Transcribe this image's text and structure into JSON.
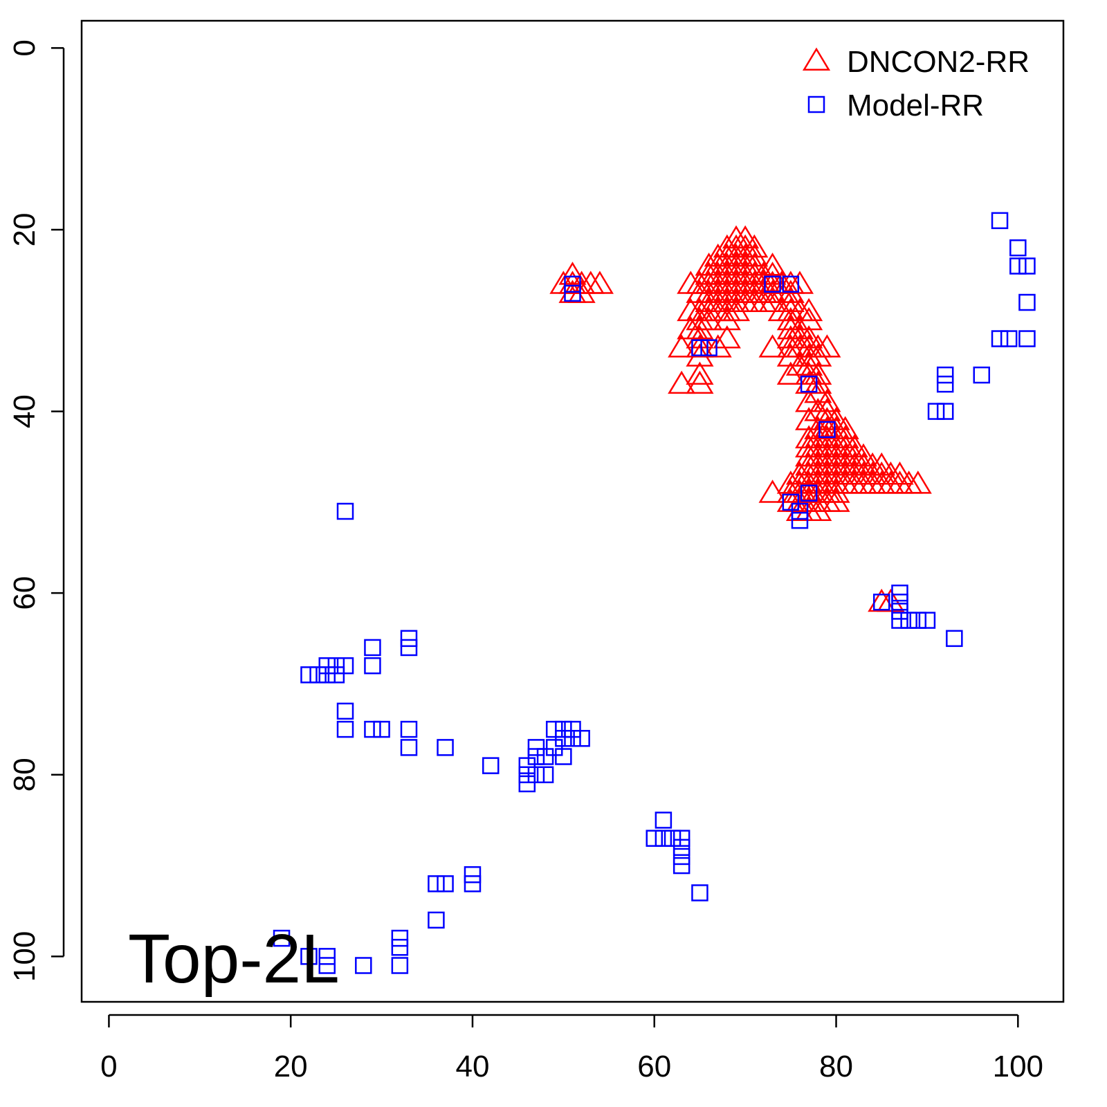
{
  "chart_data": {
    "type": "scatter",
    "annotation": "Top-2L",
    "xlim": [
      -3,
      105
    ],
    "ylim": [
      105,
      -3
    ],
    "xticks": [
      0,
      20,
      40,
      60,
      80,
      100
    ],
    "yticks": [
      0,
      20,
      40,
      60,
      80,
      100
    ],
    "legend": "top-right",
    "series": [
      {
        "name": "DNCON2-RR",
        "color": "#ff0000",
        "marker": "triangle",
        "x": [
          50,
          51,
          51,
          52,
          53,
          54,
          51,
          52,
          69,
          70,
          68,
          69,
          70,
          71,
          67,
          68,
          69,
          70,
          71,
          66,
          67,
          68,
          69,
          70,
          71,
          73,
          66,
          67,
          68,
          69,
          70,
          71,
          72,
          73,
          64,
          65,
          66,
          67,
          68,
          69,
          70,
          71,
          72,
          73,
          74,
          75,
          76,
          65,
          66,
          67,
          68,
          69,
          70,
          71,
          72,
          73,
          74,
          75,
          66,
          67,
          68,
          69,
          70,
          71,
          72,
          73,
          75,
          64,
          65,
          66,
          67,
          68,
          69,
          74,
          75,
          76,
          77,
          65,
          66,
          68,
          75,
          77,
          64,
          65,
          75,
          76,
          65,
          68,
          75,
          76,
          77,
          63,
          65,
          67,
          73,
          75,
          76,
          77,
          78,
          79,
          65,
          75,
          77,
          78,
          76,
          77,
          65,
          75,
          77,
          78,
          63,
          65,
          77,
          78,
          78,
          77,
          79,
          78,
          79,
          77,
          79,
          80,
          78,
          79,
          80,
          81,
          77,
          78,
          79,
          80,
          81,
          77,
          78,
          79,
          80,
          81,
          82,
          77,
          78,
          79,
          80,
          81,
          82,
          83,
          77,
          78,
          79,
          80,
          81,
          82,
          83,
          84,
          85,
          76,
          77,
          78,
          79,
          80,
          81,
          82,
          83,
          84,
          85,
          86,
          87,
          75,
          76,
          77,
          78,
          79,
          80,
          81,
          82,
          83,
          84,
          85,
          86,
          87,
          88,
          89,
          73,
          75,
          76,
          77,
          78,
          79,
          80,
          75,
          76,
          77,
          78,
          79,
          80,
          76,
          77,
          78,
          85,
          86
        ],
        "values": [
          26,
          25,
          26,
          26,
          26,
          26,
          27,
          27,
          21,
          21,
          22,
          22,
          22,
          22,
          23,
          23,
          23,
          23,
          23,
          24,
          24,
          24,
          24,
          24,
          24,
          24,
          25,
          25,
          25,
          25,
          25,
          25,
          25,
          25,
          26,
          26,
          26,
          26,
          26,
          26,
          26,
          26,
          26,
          26,
          26,
          26,
          26,
          27,
          27,
          27,
          27,
          27,
          27,
          27,
          27,
          27,
          27,
          27,
          28,
          28,
          28,
          28,
          28,
          28,
          28,
          28,
          28,
          29,
          29,
          29,
          29,
          29,
          29,
          29,
          29,
          29,
          29,
          30,
          30,
          30,
          30,
          30,
          31,
          31,
          31,
          31,
          32,
          32,
          32,
          32,
          32,
          33,
          33,
          33,
          33,
          33,
          33,
          33,
          33,
          33,
          34,
          34,
          34,
          34,
          35,
          35,
          36,
          36,
          36,
          36,
          37,
          37,
          37,
          37,
          38,
          39,
          39,
          40,
          40,
          41,
          41,
          41,
          42,
          42,
          42,
          42,
          43,
          43,
          43,
          43,
          43,
          44,
          44,
          44,
          44,
          44,
          44,
          45,
          45,
          45,
          45,
          45,
          45,
          45,
          46,
          46,
          46,
          46,
          46,
          46,
          46,
          46,
          46,
          47,
          47,
          47,
          47,
          47,
          47,
          47,
          47,
          47,
          47,
          47,
          47,
          48,
          48,
          48,
          48,
          48,
          48,
          48,
          48,
          48,
          48,
          48,
          48,
          48,
          48,
          48,
          49,
          49,
          49,
          49,
          49,
          49,
          49,
          50,
          50,
          50,
          50,
          50,
          50,
          51,
          51,
          51,
          61,
          61
        ]
      },
      {
        "name": "Model-RR",
        "color": "#0000ff",
        "marker": "square",
        "x": [
          98,
          100,
          100,
          101,
          101,
          98,
          99,
          101,
          96,
          92,
          92,
          91,
          92,
          26,
          87,
          87,
          85,
          87,
          87,
          88,
          89,
          90,
          93,
          33,
          33,
          29,
          29,
          26,
          25,
          24,
          22,
          23,
          24,
          25,
          26,
          26,
          29,
          30,
          33,
          33,
          37,
          42,
          46,
          46,
          46,
          47,
          47,
          47,
          48,
          48,
          49,
          49,
          50,
          50,
          50,
          51,
          51,
          52,
          61,
          60,
          61,
          62,
          63,
          63,
          63,
          63,
          65,
          40,
          40,
          36,
          37,
          36,
          32,
          32,
          32,
          19,
          22,
          24,
          24,
          28,
          51,
          51,
          65,
          66,
          73,
          75,
          77,
          79,
          75,
          76,
          76,
          77
        ],
        "values": [
          19,
          22,
          24,
          24,
          28,
          32,
          32,
          32,
          36,
          36,
          37,
          40,
          40,
          51,
          60,
          61,
          61,
          62,
          63,
          63,
          63,
          63,
          65,
          65,
          66,
          66,
          68,
          68,
          68,
          68,
          69,
          69,
          69,
          69,
          73,
          75,
          75,
          75,
          75,
          77,
          77,
          79,
          79,
          80,
          81,
          77,
          78,
          80,
          78,
          80,
          75,
          77,
          75,
          76,
          78,
          75,
          76,
          76,
          85,
          87,
          87,
          87,
          87,
          88,
          89,
          90,
          93,
          91,
          92,
          92,
          92,
          96,
          98,
          99,
          101,
          98,
          100,
          100,
          101,
          101,
          26,
          27,
          33,
          33,
          26,
          26,
          37,
          42,
          50,
          51,
          52,
          49
        ]
      }
    ]
  }
}
